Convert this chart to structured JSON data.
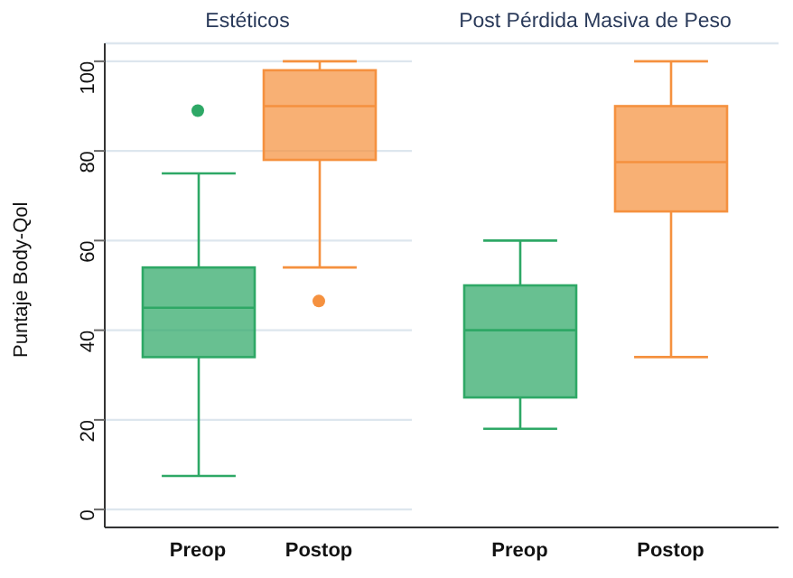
{
  "chart_data": [
    {
      "type": "box",
      "title": "Estéticos",
      "ylabel": "Puntaje Body-Qol",
      "categories": [
        "Preop",
        "Postop"
      ],
      "colors": [
        "#2ea866",
        "#f5913f"
      ],
      "boxes": [
        {
          "low": 7.5,
          "q1": 34,
          "median": 45,
          "q3": 54,
          "high": 75,
          "outliers": [
            89
          ]
        },
        {
          "low": 54,
          "q1": 78,
          "median": 90,
          "q3": 98,
          "high": 100,
          "outliers": [
            46.5
          ]
        }
      ],
      "ylim": [
        -4,
        104
      ],
      "yticks": [
        0,
        20,
        40,
        60,
        80,
        100
      ],
      "grid": "y"
    },
    {
      "type": "box",
      "title": "Post Pérdida Masiva de Peso",
      "categories": [
        "Preop",
        "Postop"
      ],
      "colors": [
        "#2ea866",
        "#f5913f"
      ],
      "boxes": [
        {
          "low": 18,
          "q1": 25,
          "median": 40,
          "q3": 50,
          "high": 60
        },
        {
          "low": 34,
          "q1": 66.5,
          "median": 77.5,
          "q3": 90,
          "high": 100
        }
      ],
      "ylim": [
        -4,
        104
      ],
      "yticks": [
        0,
        20,
        40,
        60,
        80,
        100
      ],
      "grid": "y",
      "tick_labels": "x"
    }
  ]
}
